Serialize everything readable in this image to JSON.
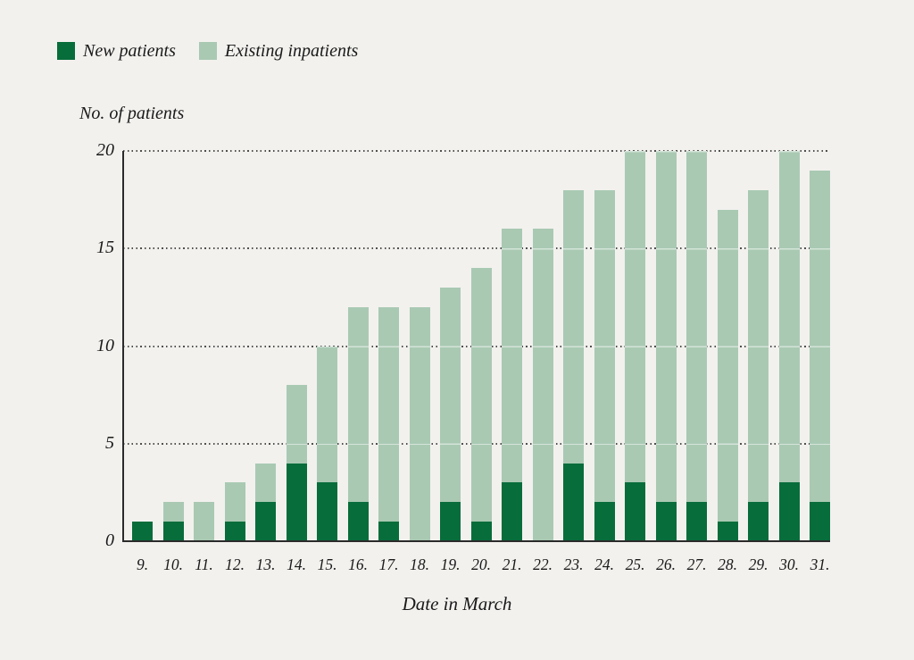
{
  "figure": {
    "background_color": "#f2f1ee",
    "text_color": "#1a1a1a"
  },
  "legend": {
    "items": [
      {
        "label": "New patients",
        "color": "#076d3b"
      },
      {
        "label": "Existing inpatients",
        "color": "#a9c9b3"
      }
    ]
  },
  "chart_data": {
    "type": "bar",
    "stacked": true,
    "title": "No. of patients",
    "ylabel": "No. of patients",
    "xlabel": "Date in March",
    "categories": [
      "9.",
      "10.",
      "11.",
      "12.",
      "13.",
      "14.",
      "15.",
      "16.",
      "17.",
      "18.",
      "19.",
      "20.",
      "21.",
      "22.",
      "23.",
      "24.",
      "25.",
      "26.",
      "27.",
      "28.",
      "29.",
      "30.",
      "31."
    ],
    "series": [
      {
        "name": "New patients",
        "color": "#076d3b",
        "values": [
          1,
          1,
          0,
          1,
          2,
          4,
          3,
          2,
          1,
          0,
          2,
          1,
          3,
          0,
          4,
          2,
          3,
          2,
          2,
          1,
          2,
          3,
          2
        ]
      },
      {
        "name": "Existing inpatients",
        "color": "#a9c9b3",
        "values": [
          0,
          1,
          2,
          2,
          2,
          4,
          7,
          10,
          11,
          12,
          11,
          13,
          13,
          16,
          14,
          16,
          17,
          18,
          18,
          16,
          16,
          17,
          17
        ]
      }
    ],
    "totals": [
      1,
      2,
      2,
      3,
      4,
      8,
      10,
      12,
      12,
      12,
      13,
      14,
      16,
      16,
      18,
      18,
      20,
      20,
      20,
      17,
      18,
      20,
      19
    ],
    "ylim": [
      0,
      20
    ],
    "yticks": [
      0,
      5,
      10,
      15,
      20
    ],
    "grid": "dotted horizontal gridlines at y ticks",
    "legend_position": "top-left",
    "gridline_color": "#4f4f4f",
    "axis_color": "#2b2b2b"
  }
}
